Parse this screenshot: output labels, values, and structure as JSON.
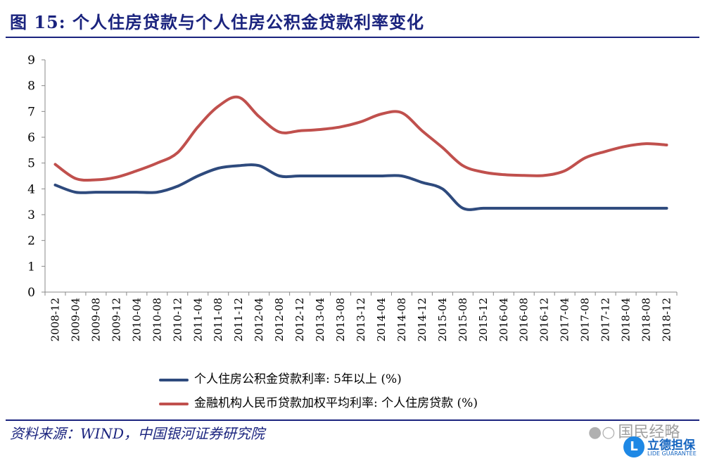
{
  "title": "图 15:  个人住房贷款与个人住房公积金贷款利率变化",
  "source": "资料来源：WIND，中国银河证券研究院",
  "watermark": "国民经略",
  "logo": {
    "name": "立德担保",
    "sub": "LIDE GUARANTEE"
  },
  "colors": {
    "series1": "#2e4a7d",
    "series2": "#c0504d",
    "accent": "#1a237e"
  },
  "chart_data": {
    "type": "line",
    "ylim": [
      0,
      9
    ],
    "yticks": [
      "0",
      "1",
      "2",
      "3",
      "4",
      "5",
      "6",
      "7",
      "8",
      "9"
    ],
    "xticks": [
      "2008-12",
      "2009-04",
      "2009-08",
      "2009-12",
      "2010-04",
      "2010-08",
      "2010-12",
      "2011-04",
      "2011-08",
      "2011-12",
      "2012-04",
      "2012-08",
      "2012-12",
      "2013-04",
      "2013-08",
      "2013-12",
      "2014-04",
      "2014-08",
      "2014-12",
      "2015-04",
      "2015-08",
      "2015-12",
      "2016-04",
      "2016-08",
      "2016-12",
      "2017-04",
      "2017-08",
      "2017-12",
      "2018-04",
      "2018-08",
      "2018-12"
    ],
    "grid": false,
    "legend_position": "bottom",
    "series": [
      {
        "name": "个人住房公积金贷款利率: 5年以上 (%)",
        "values": [
          4.15,
          3.87,
          3.87,
          3.87,
          3.87,
          3.87,
          4.1,
          4.5,
          4.8,
          4.9,
          4.9,
          4.5,
          4.5,
          4.5,
          4.5,
          4.5,
          4.5,
          4.5,
          4.25,
          4.0,
          3.25,
          3.25,
          3.25,
          3.25,
          3.25,
          3.25,
          3.25,
          3.25,
          3.25,
          3.25,
          3.25
        ]
      },
      {
        "name": "金融机构人民币贷款加权平均利率: 个人住房贷款 (%)",
        "values": [
          4.95,
          4.4,
          4.35,
          4.45,
          4.7,
          5.0,
          5.4,
          6.4,
          7.2,
          7.55,
          6.8,
          6.2,
          6.25,
          6.3,
          6.4,
          6.6,
          6.9,
          6.95,
          6.25,
          5.6,
          4.9,
          4.65,
          4.55,
          4.52,
          4.52,
          4.7,
          5.2,
          5.45,
          5.65,
          5.75,
          5.7
        ]
      }
    ]
  }
}
